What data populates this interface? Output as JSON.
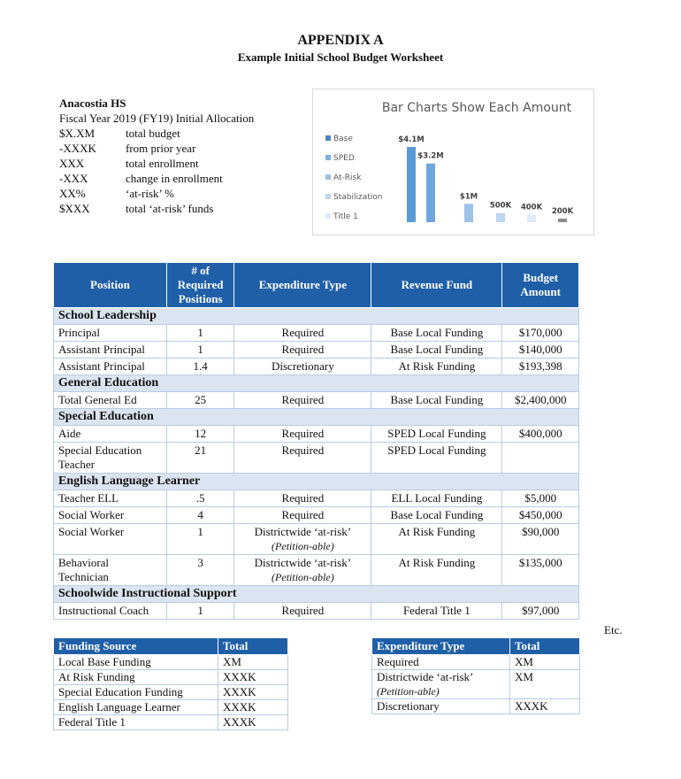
{
  "header": {
    "title": "APPENDIX A",
    "subtitle": "Example Initial School Budget Worksheet"
  },
  "school": {
    "name": "Anacostia HS",
    "allocation": "Fiscal Year 2019 (FY19) Initial Allocation",
    "items": [
      [
        "$X.XM",
        "total budget"
      ],
      [
        "-XXXK",
        "from prior year"
      ],
      [
        "XXX",
        "total enrollment"
      ],
      [
        "-XXX",
        "change in enrollment"
      ],
      [
        "XX%",
        "‘at-risk’ %"
      ],
      [
        "$XXX",
        "total ‘at-risk’ funds"
      ]
    ]
  },
  "chart_data": {
    "type": "bar",
    "title": "Bar Charts Show Each Amount",
    "categories": [
      null,
      null,
      null,
      null,
      null,
      null
    ],
    "values": [
      4100000,
      3200000,
      1000000,
      500000,
      400000,
      200000
    ],
    "value_labels": [
      "$4.1M",
      "$3.2M",
      "$1M",
      "500K",
      "400K",
      "200K"
    ],
    "colors": [
      "#5b9bd5",
      "#6fa7dc",
      "#9dc3e6",
      "#bdd7ee",
      "#deebf7",
      "#8c8c8c"
    ],
    "legend": [
      {
        "name": "Base",
        "color": "#4a86c5"
      },
      {
        "name": "SPED",
        "color": "#7fb0de"
      },
      {
        "name": "At-Risk",
        "color": "#9cc3e6"
      },
      {
        "name": "Stabilization",
        "color": "#bdd7ee"
      },
      {
        "name": "Title 1",
        "color": "#ddebf7"
      }
    ]
  },
  "main_table": {
    "headers": [
      "Position",
      "# of Required Positions",
      "Expenditure Type",
      "Revenue Fund",
      "Budget Amount"
    ],
    "sections": [
      {
        "title": "School Leadership",
        "rows": [
          {
            "cells": [
              "Principal",
              "1",
              "Required",
              "Base Local Funding",
              "$170,000"
            ]
          },
          {
            "cells": [
              "Assistant Principal",
              "1",
              "Required",
              "Base Local Funding",
              "$140,000"
            ]
          },
          {
            "cells": [
              "Assistant Principal",
              "1.4",
              "Discretionary",
              "At Risk Funding",
              "$193,398"
            ]
          }
        ]
      },
      {
        "title": "General Education",
        "rows": [
          {
            "cells": [
              "Total General Ed",
              "25",
              "Required",
              "Base Local Funding",
              "$2,400,000"
            ]
          }
        ]
      },
      {
        "title": "Special Education",
        "rows": [
          {
            "cells": [
              "Aide",
              "12",
              "Required",
              "SPED Local Funding",
              "$400,000"
            ]
          },
          {
            "cells": [
              "Special Education Teacher",
              "21",
              "Required",
              "SPED Local Funding",
              null
            ]
          }
        ]
      },
      {
        "title": "English Language Learner",
        "rows": [
          {
            "cells": [
              "Teacher ELL",
              ".5",
              "Required",
              "ELL Local Funding",
              "$5,000"
            ]
          },
          {
            "cells": [
              "Social Worker",
              "4",
              "Required",
              "Base Local Funding",
              "$450,000"
            ]
          },
          {
            "cells": [
              "Social Worker",
              "1",
              "Districtwide ‘at-risk’",
              "At Risk Funding",
              "$90,000"
            ],
            "note": "(Petition-able)"
          },
          {
            "cells": [
              "Behavioral Technician",
              "3",
              "Districtwide ‘at-risk’",
              "At Risk Funding",
              "$135,000"
            ],
            "note": "(Petition-able)"
          }
        ]
      },
      {
        "title": "Schoolwide Instructional Support",
        "rows": [
          {
            "cells": [
              "Instructional Coach",
              "1",
              "Required",
              "Federal Title 1",
              "$97,000"
            ]
          }
        ]
      }
    ]
  },
  "etc": "Etc.",
  "funding_summary": {
    "headers": [
      "Funding Source",
      "Total"
    ],
    "rows": [
      {
        "cells": [
          "Local Base Funding",
          "XM"
        ]
      },
      {
        "cells": [
          "At Risk Funding",
          "XXXK"
        ]
      },
      {
        "cells": [
          "Special Education Funding",
          "XXXK"
        ]
      },
      {
        "cells": [
          "English Language Learner",
          "XXXK"
        ]
      },
      {
        "cells": [
          "Federal Title 1",
          "XXXK"
        ]
      }
    ]
  },
  "expenditure_summary": {
    "headers": [
      "Expenditure Type",
      "Total"
    ],
    "rows": [
      {
        "cells": [
          "Required",
          "XM"
        ]
      },
      {
        "cells": [
          "Districtwide ‘at-risk’",
          "XM"
        ],
        "note": "(Petition-able)"
      },
      {
        "cells": [
          "Discretionary",
          "XXXK"
        ]
      }
    ]
  }
}
